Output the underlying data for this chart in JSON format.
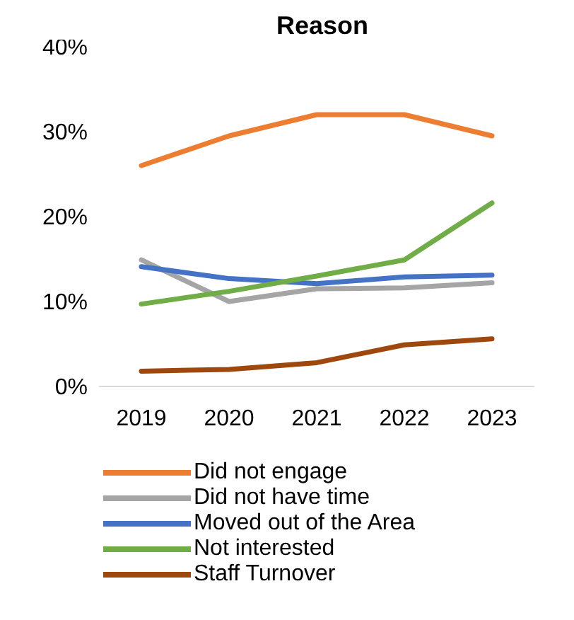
{
  "chart_data": {
    "type": "line",
    "title": "Reason",
    "categories": [
      "2019",
      "2020",
      "2021",
      "2022",
      "2023"
    ],
    "series": [
      {
        "name": "Did not engage",
        "color": "#ed7d31",
        "values": [
          26,
          29.5,
          32,
          32,
          29.5
        ]
      },
      {
        "name": "Did not have time",
        "color": "#a5a5a5",
        "values": [
          14.9,
          10,
          11.5,
          11.6,
          12.2
        ]
      },
      {
        "name": "Moved out of the Area",
        "color": "#4472c4",
        "values": [
          14.1,
          12.7,
          12.1,
          12.9,
          13.1
        ]
      },
      {
        "name": "Not interested",
        "color": "#70ad47",
        "values": [
          9.7,
          11.2,
          13,
          14.9,
          21.6
        ]
      },
      {
        "name": "Staff Turnover",
        "color": "#9e480e",
        "values": [
          1.8,
          2,
          2.8,
          4.9,
          5.6
        ]
      }
    ],
    "ylim": [
      0,
      40
    ],
    "yticks": [
      {
        "value": 0,
        "label": "0%"
      },
      {
        "value": 10,
        "label": "10%"
      },
      {
        "value": 20,
        "label": "20%"
      },
      {
        "value": 30,
        "label": "30%"
      },
      {
        "value": 40,
        "label": "40%"
      }
    ],
    "grid": false,
    "legend": "bottom",
    "marker": "none",
    "line_style": "solid"
  }
}
